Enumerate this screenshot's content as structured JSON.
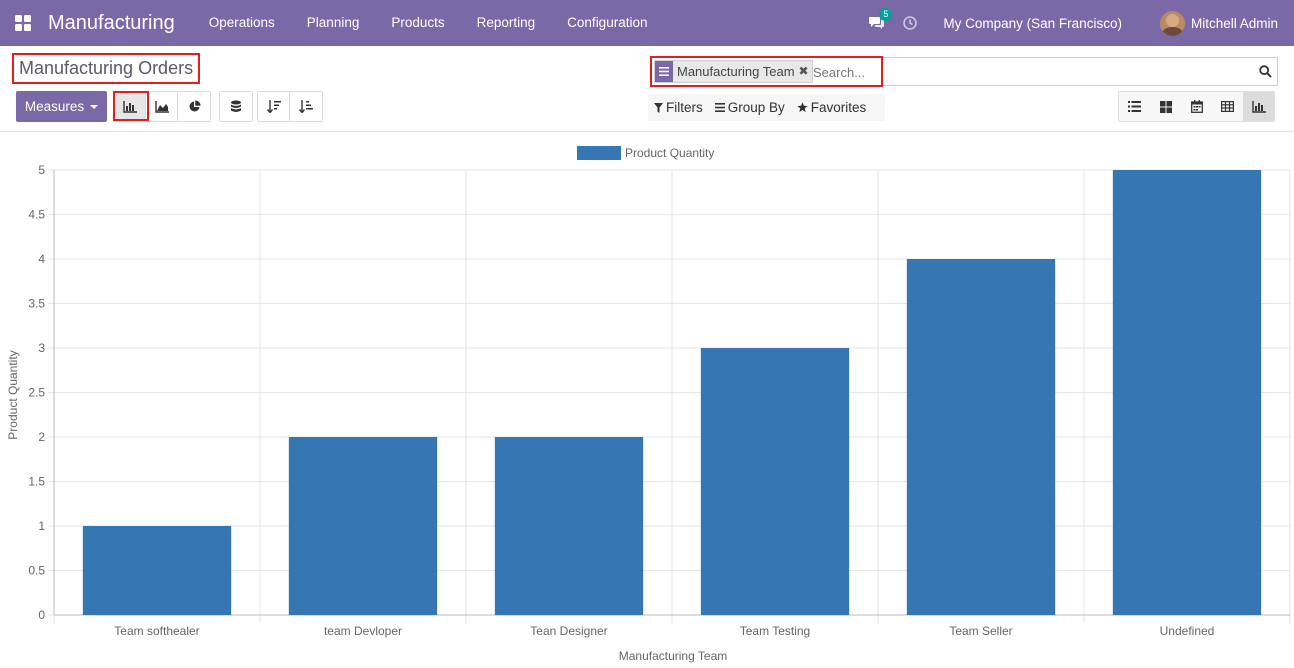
{
  "navbar": {
    "brand": "Manufacturing",
    "menu": [
      "Operations",
      "Planning",
      "Products",
      "Reporting",
      "Configuration"
    ],
    "messages_count": "5",
    "company": "My Company (San Francisco)",
    "user": "Mitchell Admin"
  },
  "control_panel": {
    "title": "Manufacturing Orders",
    "measures_label": "Measures",
    "facet_label": "Manufacturing Team",
    "search_placeholder": "Search...",
    "filters_label": "Filters",
    "groupby_label": "Group By",
    "favorites_label": "Favorites"
  },
  "chart_data": {
    "type": "bar",
    "categories": [
      "Team softhealer",
      "team Devloper",
      "Tean Designer",
      "Team Testing",
      "Team Seller",
      "Undefined"
    ],
    "series": [
      {
        "name": "Product Quantity",
        "values": [
          1,
          2,
          2,
          3,
          4,
          5
        ]
      }
    ],
    "xlabel": "Manufacturing Team",
    "ylabel": "Product Quantity",
    "ylim": [
      0,
      5
    ],
    "yticks": [
      "0",
      "0.5",
      "1",
      "1.5",
      "2",
      "2.5",
      "3",
      "3.5",
      "4",
      "4.5",
      "5"
    ],
    "grid": true,
    "legend": "top-center",
    "color": "#3677b3"
  }
}
